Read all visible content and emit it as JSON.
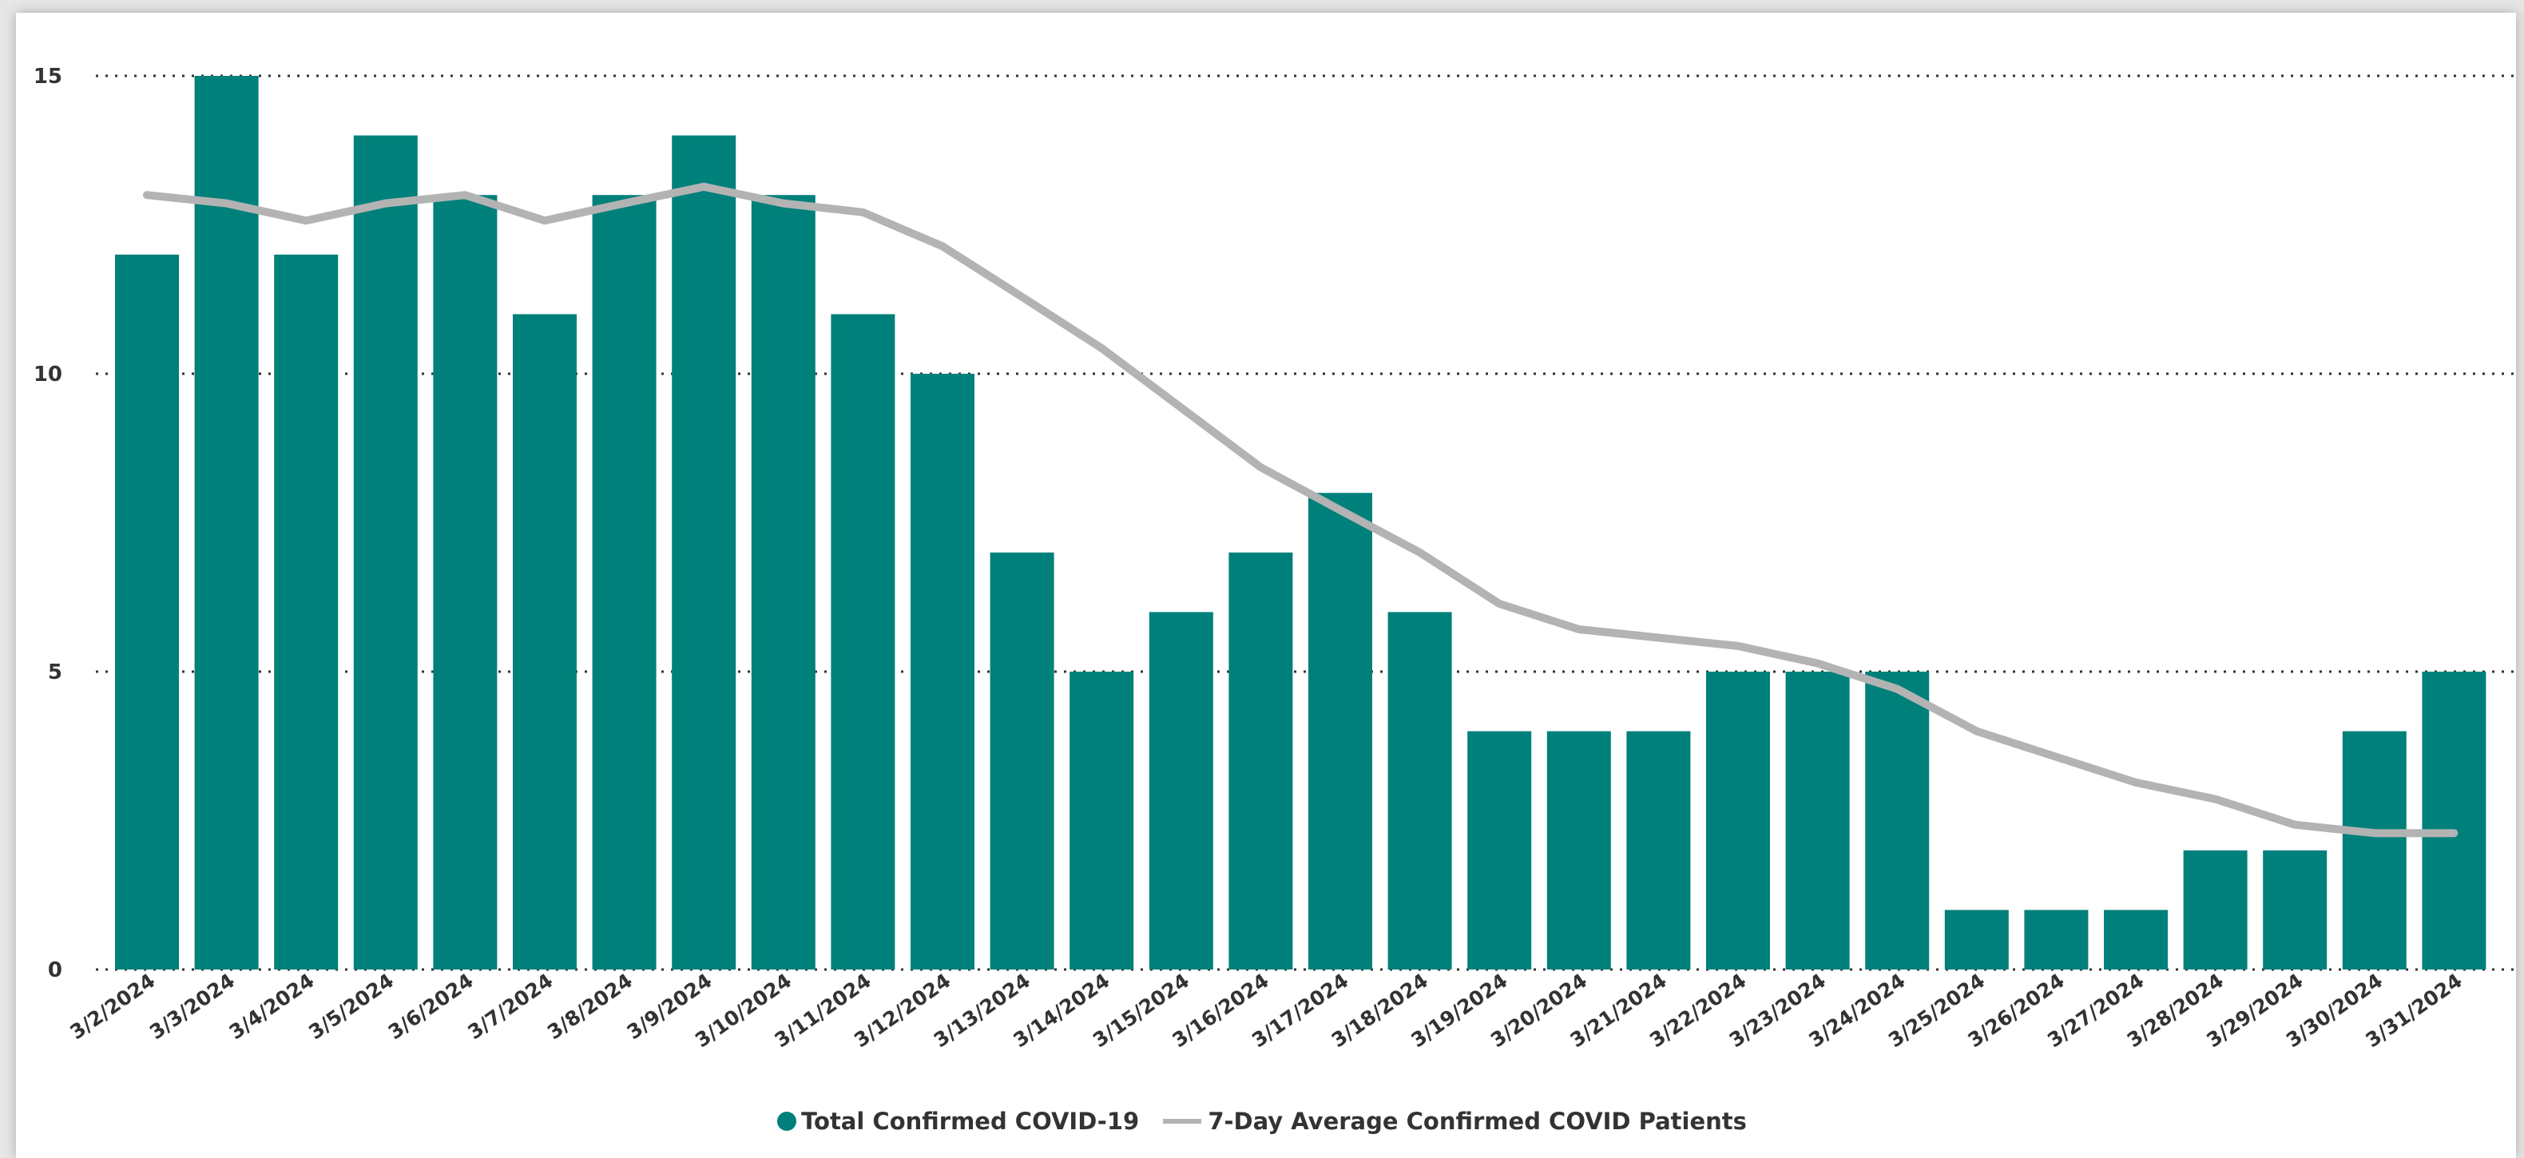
{
  "chart_data": {
    "type": "bar",
    "categories": [
      "3/2/2024",
      "3/3/2024",
      "3/4/2024",
      "3/5/2024",
      "3/6/2024",
      "3/7/2024",
      "3/8/2024",
      "3/9/2024",
      "3/10/2024",
      "3/11/2024",
      "3/12/2024",
      "3/13/2024",
      "3/14/2024",
      "3/15/2024",
      "3/16/2024",
      "3/17/2024",
      "3/18/2024",
      "3/19/2024",
      "3/20/2024",
      "3/21/2024",
      "3/22/2024",
      "3/23/2024",
      "3/24/2024",
      "3/25/2024",
      "3/26/2024",
      "3/27/2024",
      "3/28/2024",
      "3/29/2024",
      "3/30/2024",
      "3/31/2024"
    ],
    "series": [
      {
        "name": "Total Confirmed COVID-19",
        "type": "bar",
        "color": "#00807a",
        "values": [
          12,
          15,
          12,
          14,
          13,
          11,
          13,
          14,
          13,
          11,
          10,
          7,
          5,
          6,
          7,
          8,
          6,
          4,
          4,
          4,
          5,
          5,
          5,
          1,
          1,
          1,
          2,
          2,
          4,
          5
        ]
      },
      {
        "name": "7-Day Average Confirmed COVID Patients",
        "type": "line",
        "color": "#b3b3b3",
        "values": [
          13.0,
          12.86,
          12.57,
          12.86,
          13.0,
          12.57,
          12.86,
          13.14,
          12.86,
          12.71,
          12.14,
          11.29,
          10.43,
          9.43,
          8.43,
          7.71,
          7.0,
          6.14,
          5.71,
          5.57,
          5.43,
          5.14,
          4.71,
          4.0,
          3.57,
          3.14,
          2.86,
          2.43,
          2.29,
          2.29
        ]
      }
    ],
    "yticks": [
      0,
      5,
      10,
      15
    ],
    "ylim": [
      0,
      15
    ],
    "grid": true,
    "legend_position": "bottom"
  }
}
